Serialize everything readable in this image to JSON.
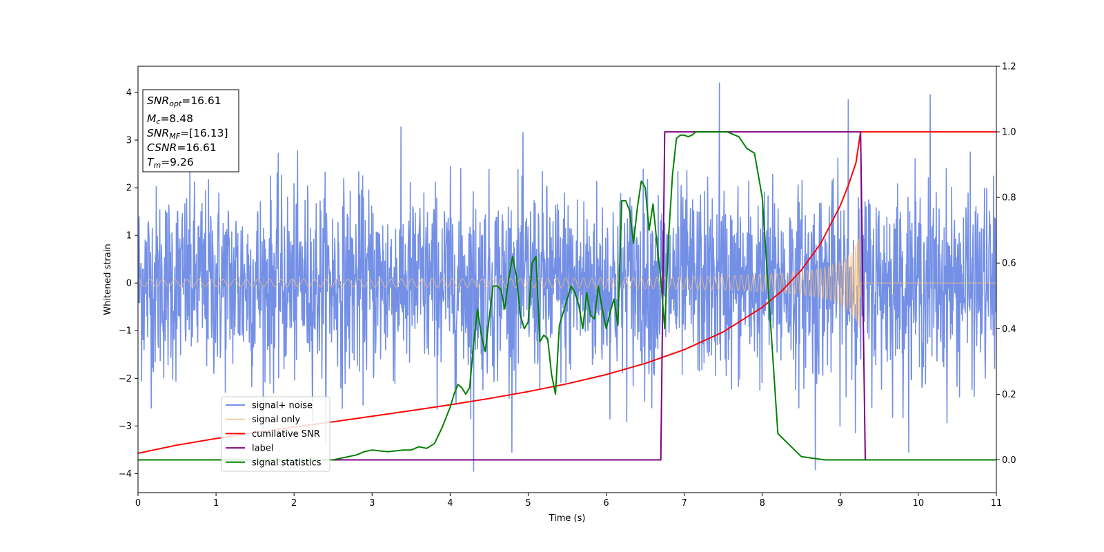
{
  "chart_data": {
    "type": "line",
    "title": "",
    "xlabel": "Time (s)",
    "ylabel": "Whitened strain",
    "ylabel_right": "",
    "xlim": [
      0,
      11
    ],
    "ylim": [
      -4.4,
      4.55
    ],
    "ylim_right": [
      -0.1,
      1.2
    ],
    "x_ticks": [
      "0",
      "1",
      "2",
      "3",
      "4",
      "5",
      "6",
      "7",
      "8",
      "9",
      "10",
      "11"
    ],
    "y_ticks_left": [
      "−4",
      "−3",
      "−2",
      "−1",
      "0",
      "1",
      "2",
      "3",
      "4"
    ],
    "y_ticks_right": [
      "0.0",
      "0.2",
      "0.4",
      "0.6",
      "0.8",
      "1.0",
      "1.2"
    ],
    "grid": false,
    "legend_position": "lower-left",
    "info_box": {
      "lines": [
        {
          "name": "SNR",
          "sub": "opt",
          "value": "=16.61"
        },
        {
          "name": "M",
          "sub": "c",
          "value": "=8.48"
        },
        {
          "name": "SNR",
          "sub": "MF",
          "value": "=[16.13]"
        },
        {
          "name": "CSNR",
          "sub": "",
          "value": "=16.61"
        },
        {
          "name": "T",
          "sub": "m",
          "value": "=9.26"
        }
      ]
    },
    "series": [
      {
        "name": "signal+ noise",
        "axis": "left",
        "color": "#7490e6",
        "kind": "noise",
        "sigma": 1.0,
        "n_points": 2400,
        "range": [
          -3.95,
          4.2
        ],
        "notable_peaks": [
          [
            4.3,
            -3.95
          ],
          [
            7.45,
            4.2
          ],
          [
            8.68,
            -3.92
          ],
          [
            9.1,
            3.85
          ],
          [
            10.15,
            3.95
          ]
        ]
      },
      {
        "name": "signal only",
        "axis": "left",
        "color": "#f5be78",
        "kind": "chirp",
        "amp_start": 0.05,
        "amp_end": 1.05,
        "t_merger": 9.26,
        "value_after_merger": 0
      },
      {
        "name": "cumilative SNR",
        "axis": "right",
        "color": "#ff0000",
        "x": [
          0,
          0.5,
          1,
          1.5,
          2,
          2.5,
          3,
          3.5,
          4,
          4.5,
          5,
          5.5,
          6,
          6.5,
          7,
          7.5,
          8,
          8.25,
          8.5,
          8.75,
          9,
          9.1,
          9.2,
          9.26,
          11
        ],
        "y": [
          0.02,
          0.045,
          0.065,
          0.083,
          0.1,
          0.116,
          0.133,
          0.15,
          0.168,
          0.187,
          0.208,
          0.232,
          0.26,
          0.294,
          0.336,
          0.39,
          0.465,
          0.515,
          0.578,
          0.66,
          0.775,
          0.835,
          0.905,
          1.0,
          1.0
        ]
      },
      {
        "name": "label",
        "axis": "right",
        "color": "#800080",
        "x": [
          0,
          6.7,
          6.75,
          9.26,
          9.32,
          11
        ],
        "y": [
          0,
          0,
          1,
          1,
          0,
          0
        ]
      },
      {
        "name": "signal statistics",
        "axis": "right",
        "color": "#008000",
        "x": [
          0,
          0.5,
          1,
          1.5,
          2,
          2.5,
          2.6,
          2.7,
          2.8,
          2.9,
          3.0,
          3.2,
          3.4,
          3.5,
          3.6,
          3.7,
          3.8,
          3.9,
          4.0,
          4.05,
          4.1,
          4.15,
          4.2,
          4.25,
          4.3,
          4.35,
          4.4,
          4.45,
          4.5,
          4.55,
          4.6,
          4.65,
          4.7,
          4.75,
          4.8,
          4.85,
          4.9,
          4.95,
          5.0,
          5.05,
          5.1,
          5.15,
          5.2,
          5.25,
          5.3,
          5.35,
          5.4,
          5.45,
          5.5,
          5.55,
          5.6,
          5.65,
          5.7,
          5.75,
          5.8,
          5.85,
          5.9,
          5.95,
          6.0,
          6.05,
          6.1,
          6.15,
          6.2,
          6.25,
          6.3,
          6.35,
          6.4,
          6.45,
          6.5,
          6.55,
          6.6,
          6.65,
          6.7,
          6.75,
          6.8,
          6.85,
          6.9,
          6.95,
          7.0,
          7.05,
          7.1,
          7.15,
          7.2,
          7.25,
          7.3,
          7.35,
          7.4,
          7.45,
          7.5,
          7.55,
          7.6,
          7.7,
          7.8,
          7.9,
          8.0,
          8.2,
          8.5,
          8.8,
          8.9,
          9.0,
          9.05,
          9.1,
          9.15,
          9.2,
          9.25,
          9.3,
          9.35,
          9.4,
          10,
          11
        ],
        "y": [
          0.0,
          0.0,
          0.0,
          0.0,
          0.0,
          0.0,
          0.005,
          0.01,
          0.015,
          0.025,
          0.03,
          0.025,
          0.03,
          0.03,
          0.04,
          0.035,
          0.05,
          0.1,
          0.16,
          0.2,
          0.23,
          0.22,
          0.2,
          0.22,
          0.35,
          0.46,
          0.38,
          0.33,
          0.43,
          0.53,
          0.53,
          0.52,
          0.46,
          0.55,
          0.62,
          0.56,
          0.44,
          0.4,
          0.42,
          0.6,
          0.62,
          0.36,
          0.38,
          0.37,
          0.26,
          0.2,
          0.41,
          0.45,
          0.49,
          0.53,
          0.51,
          0.47,
          0.4,
          0.51,
          0.44,
          0.43,
          0.53,
          0.46,
          0.4,
          0.45,
          0.49,
          0.41,
          0.79,
          0.79,
          0.76,
          0.66,
          0.77,
          0.85,
          0.83,
          0.7,
          0.78,
          0.66,
          0.55,
          0.4,
          0.68,
          0.87,
          0.98,
          0.99,
          0.99,
          0.985,
          0.99,
          1.0,
          1.0,
          1.0,
          1.0,
          1.0,
          1.0,
          1.0,
          1.0,
          1.0,
          0.995,
          0.985,
          0.95,
          0.935,
          0.8,
          0.08,
          0.01,
          0.0,
          0.0,
          0.0,
          0.0,
          0.0,
          0.0,
          0.0,
          0.0,
          0.0,
          0.0,
          0.0,
          0.0,
          0.0
        ]
      }
    ]
  }
}
